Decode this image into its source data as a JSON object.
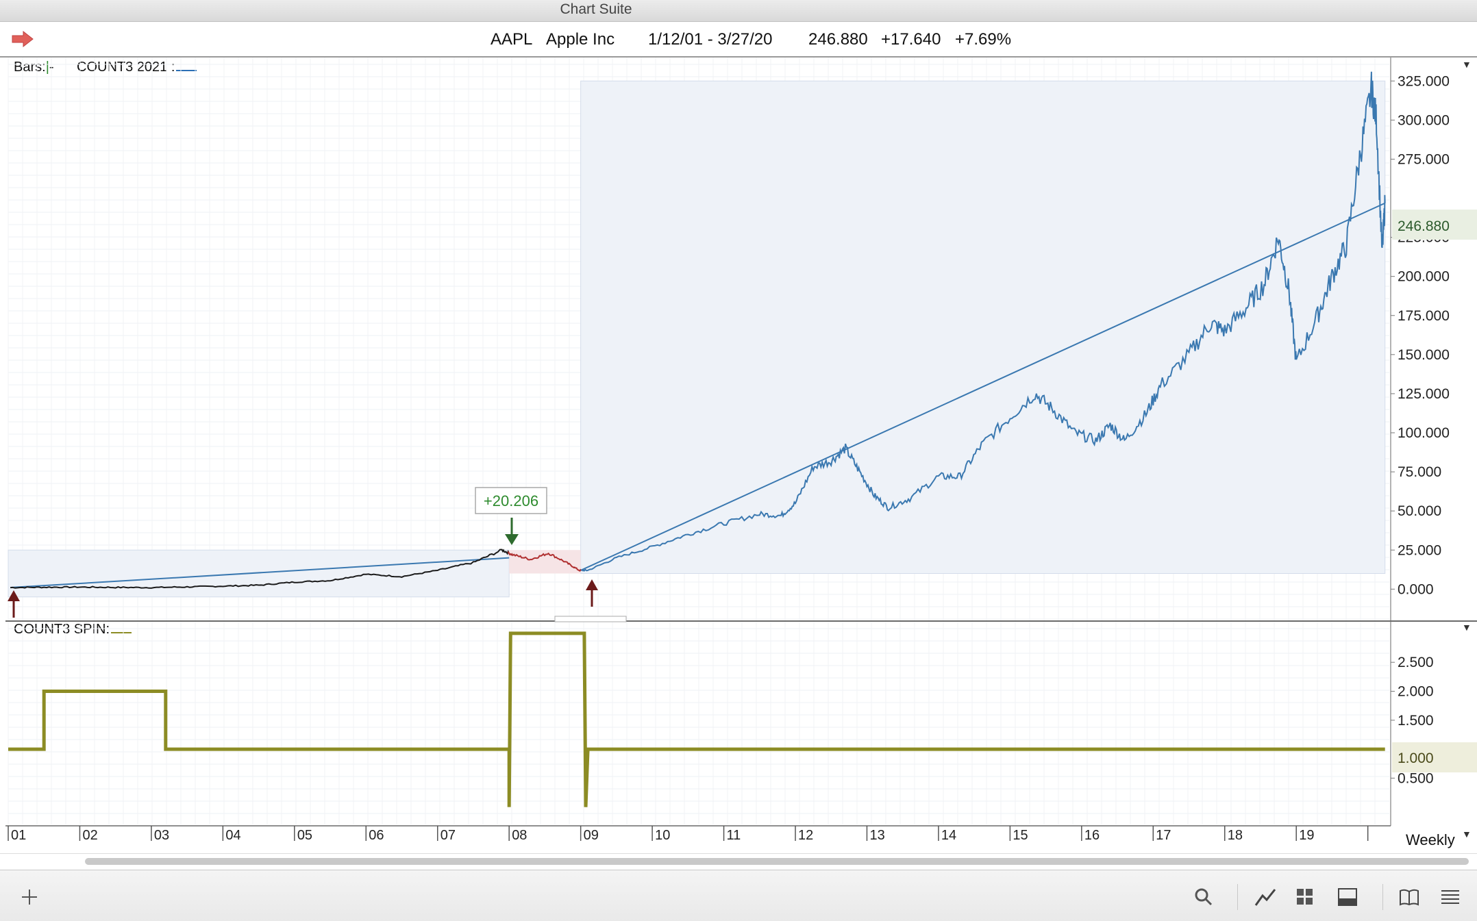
{
  "window": {
    "title": "Chart Suite"
  },
  "header": {
    "symbol": "AAPL",
    "company": "Apple Inc",
    "date_range": "1/12/01 - 3/27/20",
    "last": "246.880",
    "change": "+17.640",
    "change_pct": "+7.69%"
  },
  "price_panel": {
    "bars_label": "Bars:",
    "indicator_label": "COUNT3 2021 :",
    "current_value": "246.880",
    "annotation": "+20.206"
  },
  "spin_panel": {
    "label": "COUNT3 SPIN:",
    "current_value": "1.000"
  },
  "footer": {
    "period": "Weekly"
  },
  "colors": {
    "price_line": "#3a78b0",
    "trend_line": "#3a78b0",
    "spin_line": "#8c8c24",
    "down_segment": "#b03030",
    "up_arrow": "#6b1a1a",
    "down_arrow": "#2e6b2e",
    "highlight_box": "#eef2f8"
  },
  "icons": [
    "red-arrow-icon",
    "add-icon",
    "search-icon",
    "line-chart-icon",
    "grid-icon",
    "panel-icon",
    "book-icon",
    "menu-icon"
  ],
  "chart_data": [
    {
      "type": "line",
      "title": "",
      "series": [
        {
          "name": "AAPL",
          "points": [
            [
              2001.03,
              1.0
            ],
            [
              2001.5,
              1.2
            ],
            [
              2002,
              1.3
            ],
            [
              2002.5,
              1.1
            ],
            [
              2003,
              1.0
            ],
            [
              2003.5,
              1.4
            ],
            [
              2004,
              1.9
            ],
            [
              2004.5,
              2.5
            ],
            [
              2005,
              4.5
            ],
            [
              2005.5,
              5.5
            ],
            [
              2006,
              9.5
            ],
            [
              2006.5,
              8.0
            ],
            [
              2007,
              12.0
            ],
            [
              2007.5,
              17.0
            ],
            [
              2007.9,
              25.0
            ],
            [
              2008.05,
              22.0
            ],
            [
              2008.3,
              19.0
            ],
            [
              2008.55,
              23.0
            ],
            [
              2008.8,
              17.0
            ],
            [
              2008.98,
              12.0
            ],
            [
              2009.1,
              12.0
            ],
            [
              2009.5,
              20.0
            ],
            [
              2010,
              27.0
            ],
            [
              2010.5,
              35.0
            ],
            [
              2011,
              42.0
            ],
            [
              2011.5,
              48.0
            ],
            [
              2011.8,
              47.0
            ],
            [
              2012,
              55.0
            ],
            [
              2012.25,
              78.0
            ],
            [
              2012.5,
              82.0
            ],
            [
              2012.7,
              90.0
            ],
            [
              2012.9,
              75.0
            ],
            [
              2013.1,
              60.0
            ],
            [
              2013.3,
              52.0
            ],
            [
              2013.6,
              58.0
            ],
            [
              2014,
              72.0
            ],
            [
              2014.3,
              72.0
            ],
            [
              2014.6,
              92.0
            ],
            [
              2015,
              110.0
            ],
            [
              2015.35,
              125.0
            ],
            [
              2015.6,
              115.0
            ],
            [
              2015.9,
              100.0
            ],
            [
              2016.2,
              95.0
            ],
            [
              2016.4,
              105.0
            ],
            [
              2016.6,
              95.0
            ],
            [
              2016.9,
              112.0
            ],
            [
              2017.1,
              130.0
            ],
            [
              2017.5,
              150.0
            ],
            [
              2017.8,
              170.0
            ],
            [
              2018,
              165.0
            ],
            [
              2018.3,
              180.0
            ],
            [
              2018.55,
              195.0
            ],
            [
              2018.75,
              225.0
            ],
            [
              2018.9,
              190.0
            ],
            [
              2019.0,
              145.0
            ],
            [
              2019.3,
              175.0
            ],
            [
              2019.5,
              200.0
            ],
            [
              2019.7,
              220.0
            ],
            [
              2019.9,
              280.0
            ],
            [
              2020.05,
              320.0
            ],
            [
              2020.12,
              300.0
            ],
            [
              2020.2,
              215.0
            ],
            [
              2020.24,
              246.88
            ]
          ]
        }
      ],
      "trend_lines": [
        {
          "from": [
            2001.03,
            1.0
          ],
          "to": [
            2008.0,
            20.0
          ]
        },
        {
          "from": [
            2009.0,
            12.0
          ],
          "to": [
            2020.24,
            246.88
          ]
        }
      ],
      "annotations": [
        {
          "text": "+20.206",
          "x": 2008.0,
          "y": 25.0
        }
      ],
      "highlight_ranges": [
        {
          "x": [
            2001.0,
            2008.0
          ],
          "y": [
            -5.0,
            25.0
          ]
        },
        {
          "x": [
            2009.0,
            2020.24
          ],
          "y": [
            10.0,
            325.0
          ]
        }
      ],
      "ylim": [
        -20.0,
        340.0
      ],
      "y_ticks": [
        "0.000",
        "25.000",
        "50.000",
        "75.000",
        "100.000",
        "125.000",
        "150.000",
        "175.000",
        "200.000",
        "225.000",
        "275.000",
        "300.000",
        "325.000"
      ],
      "current_value_label": "246.880",
      "xlim": [
        2001.0,
        2020.3
      ],
      "x_ticks": [
        "01",
        "02",
        "03",
        "04",
        "05",
        "06",
        "07",
        "08",
        "09",
        "10",
        "11",
        "12",
        "13",
        "14",
        "15",
        "16",
        "17",
        "18",
        "19"
      ],
      "grid": true
    },
    {
      "type": "line",
      "title": "",
      "series": [
        {
          "name": "COUNT3 SPIN",
          "points": [
            [
              2001.0,
              1.0
            ],
            [
              2001.5,
              1.0
            ],
            [
              2001.5,
              2.0
            ],
            [
              2003.2,
              2.0
            ],
            [
              2003.2,
              1.0
            ],
            [
              2008.0,
              1.0
            ],
            [
              2008.0,
              0.0
            ],
            [
              2008.02,
              3.0
            ],
            [
              2009.05,
              3.0
            ],
            [
              2009.07,
              0.0
            ],
            [
              2009.1,
              1.0
            ],
            [
              2020.24,
              1.0
            ]
          ]
        }
      ],
      "ylim": [
        -0.3,
        3.2
      ],
      "y_ticks": [
        "0.500",
        "1.500",
        "2.000",
        "2.500"
      ],
      "current_value_label": "1.000",
      "grid": true
    }
  ]
}
